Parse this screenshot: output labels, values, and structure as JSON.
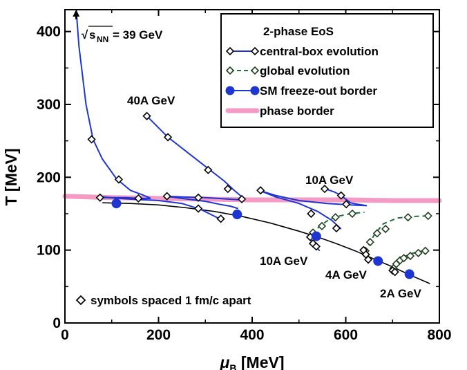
{
  "chart_data": {
    "type": "line",
    "xlabel": "μB [MeV]",
    "xlabel_main": "μ",
    "xlabel_sub": "B",
    "xlabel_unit": " [MeV]",
    "ylabel": "T [MeV]",
    "xlim": [
      0,
      800
    ],
    "ylim": [
      0,
      430
    ],
    "x_ticks": [
      0,
      200,
      400,
      600,
      800
    ],
    "y_ticks": [
      0,
      100,
      200,
      300,
      400
    ],
    "grid": false,
    "legend": {
      "placement": "top-right",
      "title": "2-phase EoS",
      "entries": [
        {
          "label": "central-box evolution",
          "style": "solid-diamond",
          "color": "#1f35d1"
        },
        {
          "label": "global evolution",
          "style": "dashed-diamond",
          "color": "#1f6e3e"
        },
        {
          "label": "SM freeze-out border",
          "style": "circle",
          "color": "#1f35d1"
        },
        {
          "label": "phase border",
          "style": "thick",
          "color": "#f59ac4"
        }
      ]
    },
    "annotations": {
      "sqrt_sym": "√",
      "sqrt_s": "s",
      "sqrt_sub": "NN",
      "sqrt_value": " = 39 GeV",
      "label_40": "40A GeV",
      "label_10_top": "10A GeV",
      "label_10_bottom": "10A GeV",
      "label_4": "4A GeV",
      "label_2": "2A GeV",
      "symbols_note": "symbols spaced 1 fm/c apart"
    },
    "series": [
      {
        "name": "phase border",
        "style": "phase",
        "x": [
          0,
          100,
          200,
          300,
          400,
          500,
          600,
          700,
          800
        ],
        "y": [
          174,
          172,
          171,
          170,
          169,
          169,
          169,
          168,
          168
        ]
      },
      {
        "name": "SM freeze-out border",
        "style": "freezeout",
        "x": [
          80,
          140,
          200,
          260,
          320,
          380,
          440,
          500,
          540,
          580,
          620,
          660,
          700,
          740,
          780
        ],
        "y": [
          165,
          164,
          162,
          158,
          153,
          146,
          137,
          126,
          118,
          109,
          99,
          88,
          77,
          65,
          54
        ]
      },
      {
        "name": "SM freeze-out points",
        "style": "freezeout-points",
        "x": [
          110,
          368,
          537,
          669,
          736
        ],
        "y": [
          164,
          149,
          119,
          85,
          67
        ]
      },
      {
        "name": "central-box 39 GeV",
        "style": "central",
        "line_x": [
          24,
          30,
          45,
          60,
          80,
          110,
          140,
          165,
          180,
          183,
          160,
          130,
          100,
          80,
          72,
          90,
          140,
          200,
          250,
          290,
          318,
          330
        ],
        "line_y": [
          430,
          380,
          300,
          252,
          225,
          198,
          182,
          176,
          172,
          171,
          171,
          172,
          172,
          173,
          172,
          172,
          170,
          168,
          164,
          156,
          147,
          143
        ],
        "points_x": [
          57,
          115,
          75,
          157,
          285,
          333
        ],
        "points_y": [
          252,
          197,
          172,
          171,
          157,
          143
        ]
      },
      {
        "name": "central-box 40A GeV",
        "style": "central",
        "line_x": [
          175,
          220,
          270,
          310,
          340,
          360,
          380,
          375,
          350,
          300,
          250,
          215,
          250,
          300,
          330,
          355,
          370
        ],
        "line_y": [
          284,
          255,
          230,
          210,
          195,
          183,
          172,
          169,
          170,
          172,
          173,
          174,
          171,
          167,
          163,
          160,
          157
        ],
        "points_x": [
          175,
          220,
          306,
          348,
          378,
          218,
          285
        ],
        "points_y": [
          284,
          255,
          210,
          184,
          170,
          174,
          172
        ]
      },
      {
        "name": "central-box 10A GeV",
        "style": "central",
        "line_x": [
          552,
          575,
          590,
          600,
          610,
          625,
          645,
          610,
          560,
          500,
          450,
          415,
          450,
          500,
          540,
          570,
          590
        ],
        "line_y": [
          185,
          180,
          175,
          170,
          165,
          163,
          161,
          162,
          164,
          168,
          175,
          182,
          173,
          164,
          153,
          141,
          129
        ],
        "points_x": [
          555,
          590,
          601,
          418,
          526,
          580
        ],
        "points_y": [
          184,
          175,
          163,
          182,
          150,
          130
        ]
      },
      {
        "name": "central-box 10A GeV low",
        "style": "central",
        "line_x": [
          522,
          527,
          532,
          538,
          544
        ],
        "line_y": [
          118,
          112,
          108,
          104,
          99
        ],
        "points_x": [
          524,
          530,
          537
        ],
        "points_y": [
          118,
          109,
          105
        ]
      },
      {
        "name": "global 10A GeV",
        "style": "global",
        "line_x": [
          526,
          535,
          545,
          560,
          580,
          610,
          640
        ],
        "line_y": [
          123,
          127,
          133,
          140,
          146,
          150,
          152
        ],
        "points_x": [
          530,
          549,
          578,
          614
        ],
        "points_y": [
          124,
          133,
          145,
          150
        ]
      },
      {
        "name": "global 4A GeV",
        "style": "global",
        "line_x": [
          640,
          648,
          660,
          680,
          710,
          740,
          775
        ],
        "line_y": [
          97,
          106,
          120,
          136,
          144,
          146,
          147
        ],
        "points_x": [
          642,
          652,
          667,
          685,
          733,
          776
        ],
        "points_y": [
          99,
          111,
          123,
          129,
          145,
          147
        ]
      },
      {
        "name": "central-box 4A GeV",
        "style": "central",
        "line_x": [
          636,
          640,
          645,
          650
        ],
        "line_y": [
          100,
          95,
          90,
          85
        ],
        "points_x": [
          638,
          643,
          648
        ],
        "points_y": [
          100,
          94,
          87
        ]
      },
      {
        "name": "global 2A GeV",
        "style": "global",
        "line_x": [
          700,
          705,
          712,
          722,
          735,
          750,
          765,
          775
        ],
        "line_y": [
          74,
          78,
          84,
          90,
          94,
          97,
          99,
          100
        ],
        "points_x": [
          702,
          708,
          716,
          724,
          738,
          755,
          770
        ],
        "points_y": [
          75,
          81,
          86,
          89,
          92,
          96,
          99
        ]
      },
      {
        "name": "central-box 2A GeV",
        "style": "central",
        "line_x": [
          698,
          702,
          706
        ],
        "line_y": [
          72,
          70,
          69
        ],
        "points_x": [
          700,
          705
        ],
        "points_y": [
          72,
          70
        ]
      }
    ]
  }
}
